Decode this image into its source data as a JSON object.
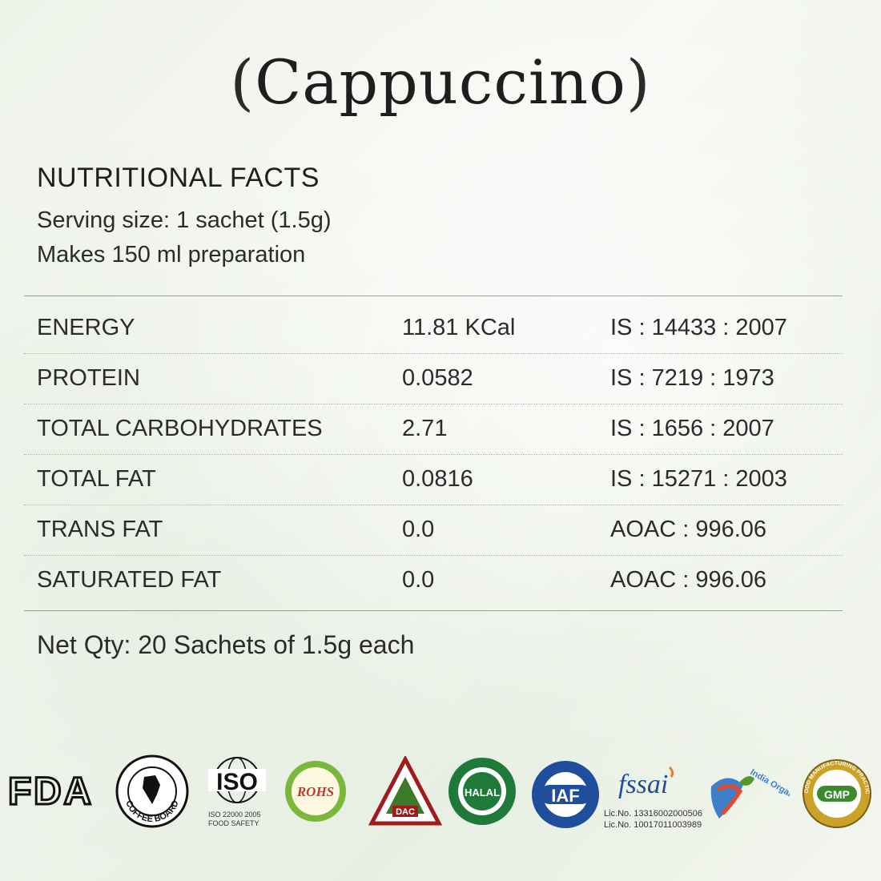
{
  "title": {
    "open": "(",
    "text": "Cappuccino",
    "close": ")"
  },
  "heading": "NUTRITIONAL FACTS",
  "serving_size": "Serving size: 1 sachet (1.5g)",
  "makes": "Makes  150 ml preparation",
  "rows": [
    {
      "name": "ENERGY",
      "value": "11.81 KCal",
      "standard": "IS : 14433 : 2007"
    },
    {
      "name": "PROTEIN",
      "value": "0.0582",
      "standard": "IS : 7219 : 1973"
    },
    {
      "name": "TOTAL CARBOHYDRATES",
      "value": "2.71",
      "standard": "IS : 1656 : 2007"
    },
    {
      "name": "TOTAL FAT",
      "value": "0.0816",
      "standard": "IS : 15271 : 2003"
    },
    {
      "name": "TRANS FAT",
      "value": "0.0",
      "standard": " AOAC : 996.06"
    },
    {
      "name": "SATURATED FAT",
      "value": "0.0",
      "standard": " AOAC : 996.06"
    }
  ],
  "net_qty": "Net Qty: 20 Sachets of 1.5g each",
  "logos": {
    "fda": "FDA",
    "coffee_board": "COFFEE BOARD",
    "iso": "ISO",
    "iso_line1": "ISO 22000 2005",
    "iso_line2": "FOOD SAFETY",
    "rohs": "ROHS",
    "dac": "DAC",
    "halal": "HALAL",
    "iaf": "IAF",
    "fssai": "fssai",
    "lic1": "Lic.No. 13316002000506",
    "lic2": "Lic.No. 10017011003989",
    "india_organic": "India Organic",
    "gmp": "GMP",
    "gmp_ring": "GOOD MANUFACTURING PRACTICE"
  },
  "colors": {
    "rule": "#8fa889",
    "text": "#1e1e1e"
  }
}
